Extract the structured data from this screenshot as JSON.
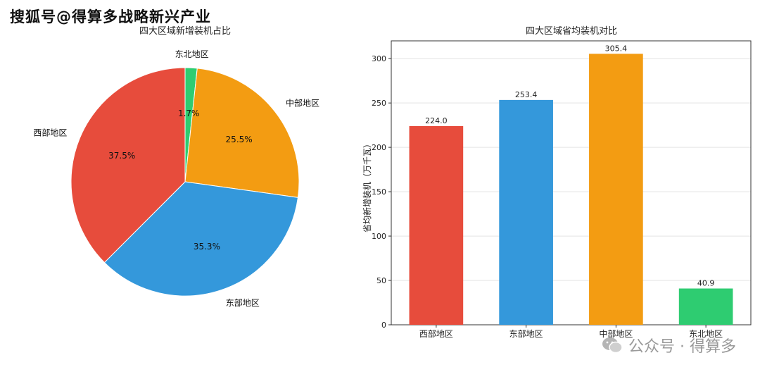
{
  "watermark": {
    "top_text": "搜狐号@得算多战略新兴产业",
    "bottom_text": "公众号 · 得算多",
    "logo_icon": "wechat-icon"
  },
  "chart_data": [
    {
      "type": "pie",
      "title": "四大区域新增装机占比",
      "slices": [
        {
          "label": "东北地区",
          "value": 1.7,
          "pct_label": "1.7%",
          "color": "#2ecc71"
        },
        {
          "label": "中部地区",
          "value": 25.5,
          "pct_label": "25.5%",
          "color": "#f39c12"
        },
        {
          "label": "东部地区",
          "value": 35.3,
          "pct_label": "35.3%",
          "color": "#3498db"
        },
        {
          "label": "西部地区",
          "value": 37.5,
          "pct_label": "37.5%",
          "color": "#e74c3c"
        }
      ]
    },
    {
      "type": "bar",
      "title": "四大区域省均装机对比",
      "ylabel": "省均新增装机（万千瓦）",
      "categories": [
        "西部地区",
        "东部地区",
        "中部地区",
        "东北地区"
      ],
      "values": [
        224.0,
        253.4,
        305.4,
        40.9
      ],
      "value_labels": [
        "224.0",
        "253.4",
        "305.4",
        "40.9"
      ],
      "colors": [
        "#e74c3c",
        "#3498db",
        "#f39c12",
        "#2ecc71"
      ],
      "ylim": [
        0,
        320
      ],
      "yticks": [
        0,
        50,
        100,
        150,
        200,
        250,
        300
      ],
      "grid": true
    }
  ]
}
